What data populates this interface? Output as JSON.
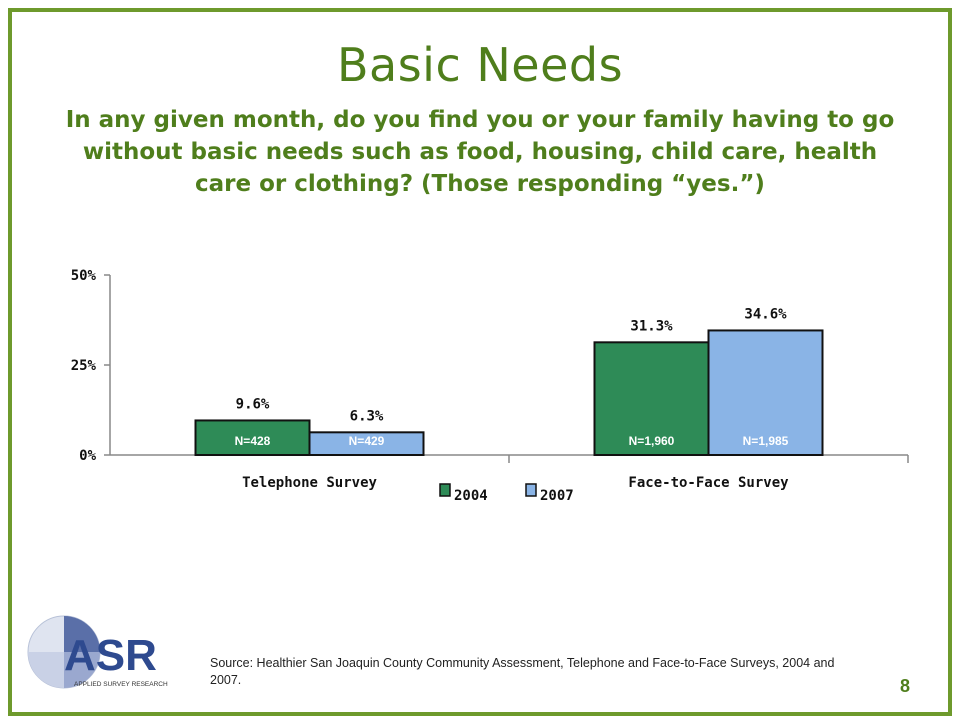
{
  "slide": {
    "title": "Basic Needs",
    "question": "In any given month, do you find you or your family having to go without basic needs such as food, housing, child care, health care or clothing? (Those responding “yes.”)",
    "source": "Source: Healthier San Joaquin County Community Assessment, Telephone and Face-to-Face Surveys, 2004 and 2007.",
    "page_number": "8",
    "logo_text": "ASR",
    "logo_tagline": "APPLIED SURVEY RESEARCH"
  },
  "colors": {
    "frame": "#6e9a2c",
    "title": "#4f7e1c",
    "series_2004": "#2e8b57",
    "series_2007": "#8ab4e6"
  },
  "chart_data": {
    "type": "bar",
    "categories": [
      "Telephone Survey",
      "Face-to-Face Survey"
    ],
    "series": [
      {
        "name": "2004",
        "values": [
          9.6,
          31.3
        ],
        "value_labels": [
          "9.6%",
          "31.3%"
        ],
        "n_labels": [
          "N=428",
          "N=1,960"
        ]
      },
      {
        "name": "2007",
        "values": [
          6.3,
          34.6
        ],
        "value_labels": [
          "6.3%",
          "34.6%"
        ],
        "n_labels": [
          "N=429",
          "N=1,985"
        ]
      }
    ],
    "yticks": [
      "0%",
      "25%",
      "50%"
    ],
    "ylim": [
      0,
      50
    ],
    "legend_position": "bottom-center",
    "grid": false
  }
}
